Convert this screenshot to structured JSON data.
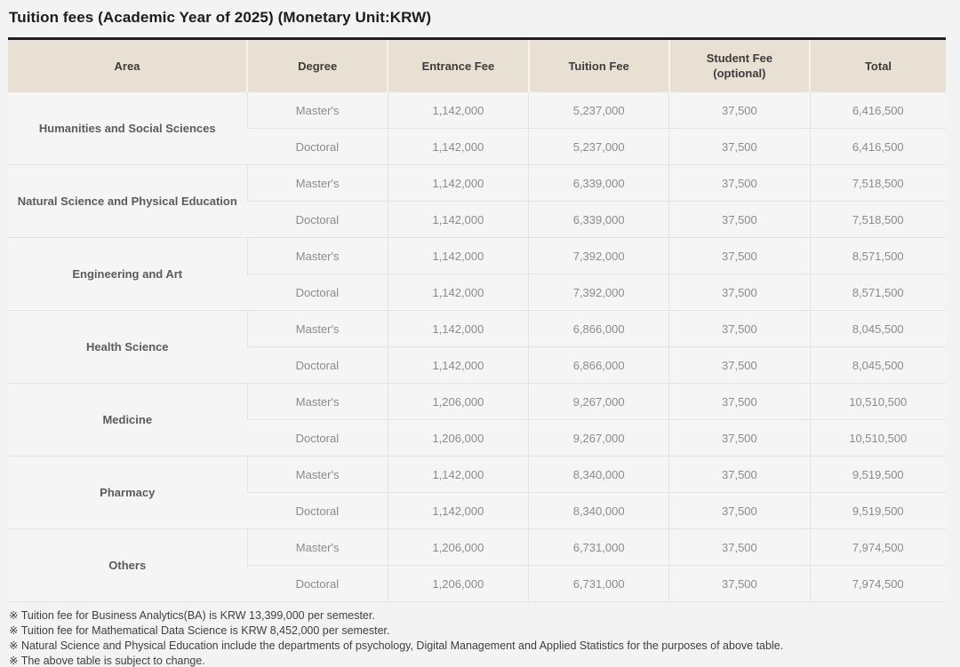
{
  "page": {
    "title": "Tuition fees (Academic Year of 2025) (Monetary Unit:KRW)"
  },
  "colors": {
    "header_bg": "#e8e0d3",
    "header_top_border": "#1f1f1f",
    "page_bg": "#f3f3f3",
    "cell_bg": "#f5f5f5",
    "cell_border": "#e3e3e3"
  },
  "table": {
    "columns": [
      {
        "label": "Area",
        "sublabel": ""
      },
      {
        "label": "Degree",
        "sublabel": ""
      },
      {
        "label": "Entrance Fee",
        "sublabel": ""
      },
      {
        "label": "Tuition Fee",
        "sublabel": ""
      },
      {
        "label": "Student Fee",
        "sublabel": "(optional)"
      },
      {
        "label": "Total",
        "sublabel": ""
      }
    ],
    "groups": [
      {
        "area": "Humanities and Social Sciences",
        "rows": [
          {
            "degree": "Master's",
            "entrance_fee": "1,142,000",
            "tuition_fee": "5,237,000",
            "student_fee": "37,500",
            "total": "6,416,500"
          },
          {
            "degree": "Doctoral",
            "entrance_fee": "1,142,000",
            "tuition_fee": "5,237,000",
            "student_fee": "37,500",
            "total": "6,416,500"
          }
        ]
      },
      {
        "area": "Natural Science and Physical Education",
        "rows": [
          {
            "degree": "Master's",
            "entrance_fee": "1,142,000",
            "tuition_fee": "6,339,000",
            "student_fee": "37,500",
            "total": "7,518,500"
          },
          {
            "degree": "Doctoral",
            "entrance_fee": "1,142,000",
            "tuition_fee": "6,339,000",
            "student_fee": "37,500",
            "total": "7,518,500"
          }
        ]
      },
      {
        "area": "Engineering and Art",
        "rows": [
          {
            "degree": "Master's",
            "entrance_fee": "1,142,000",
            "tuition_fee": "7,392,000",
            "student_fee": "37,500",
            "total": "8,571,500"
          },
          {
            "degree": "Doctoral",
            "entrance_fee": "1,142,000",
            "tuition_fee": "7,392,000",
            "student_fee": "37,500",
            "total": "8,571,500"
          }
        ]
      },
      {
        "area": "Health Science",
        "rows": [
          {
            "degree": "Master's",
            "entrance_fee": "1,142,000",
            "tuition_fee": "6,866,000",
            "student_fee": "37,500",
            "total": "8,045,500"
          },
          {
            "degree": "Doctoral",
            "entrance_fee": "1,142,000",
            "tuition_fee": "6,866,000",
            "student_fee": "37,500",
            "total": "8,045,500"
          }
        ]
      },
      {
        "area": "Medicine",
        "rows": [
          {
            "degree": "Master's",
            "entrance_fee": "1,206,000",
            "tuition_fee": "9,267,000",
            "student_fee": "37,500",
            "total": "10,510,500"
          },
          {
            "degree": "Doctoral",
            "entrance_fee": "1,206,000",
            "tuition_fee": "9,267,000",
            "student_fee": "37,500",
            "total": "10,510,500"
          }
        ]
      },
      {
        "area": "Pharmacy",
        "rows": [
          {
            "degree": "Master's",
            "entrance_fee": "1,142,000",
            "tuition_fee": "8,340,000",
            "student_fee": "37,500",
            "total": "9,519,500"
          },
          {
            "degree": "Doctoral",
            "entrance_fee": "1,142,000",
            "tuition_fee": "8,340,000",
            "student_fee": "37,500",
            "total": "9,519,500"
          }
        ]
      },
      {
        "area": "Others",
        "rows": [
          {
            "degree": "Master's",
            "entrance_fee": "1,206,000",
            "tuition_fee": "6,731,000",
            "student_fee": "37,500",
            "total": "7,974,500"
          },
          {
            "degree": "Doctoral",
            "entrance_fee": "1,206,000",
            "tuition_fee": "6,731,000",
            "student_fee": "37,500",
            "total": "7,974,500"
          }
        ]
      }
    ]
  },
  "notes": [
    "※ Tuition fee for Business Analytics(BA) is KRW 13,399,000 per semester.",
    "※ Tuition fee for Mathematical Data Science is KRW 8,452,000 per semester.",
    "※ Natural Science and Physical Education include the departments of psychology, Digital Management and Applied Statistics for the purposes of above table.",
    "※ The above table is subject to change."
  ]
}
